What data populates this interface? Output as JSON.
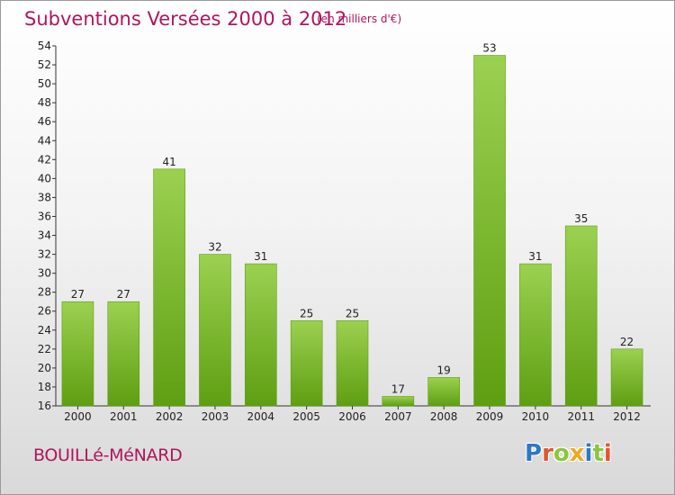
{
  "header": {
    "title": "Subventions Versées 2000 à 2012",
    "subtitle": "(en milliers d'€)"
  },
  "footer": {
    "commune": "BOUILLé-MéNARD",
    "brand_letters": [
      {
        "char": "P",
        "color": "#2f78c4"
      },
      {
        "char": "r",
        "color": "#e3562b"
      },
      {
        "char": "o",
        "color": "#8cc63e"
      },
      {
        "char": "x",
        "color": "#f2a81d"
      },
      {
        "char": "i",
        "color": "#2f78c4"
      },
      {
        "char": "t",
        "color": "#8cc63e"
      },
      {
        "char": "i",
        "color": "#e3562b"
      }
    ]
  },
  "colors": {
    "title": "#b0155e",
    "bar_light": "#9bd150",
    "bar_dark": "#5f9e12"
  },
  "chart_data": {
    "type": "bar",
    "categories": [
      "2000",
      "2001",
      "2002",
      "2003",
      "2004",
      "2005",
      "2006",
      "2007",
      "2008",
      "2009",
      "2010",
      "2011",
      "2012"
    ],
    "values": [
      27,
      27,
      41,
      32,
      31,
      25,
      25,
      17,
      19,
      53,
      31,
      35,
      22
    ],
    "ylim": [
      16,
      54
    ],
    "ytick_step": 2,
    "grid": false,
    "legend": "none"
  }
}
